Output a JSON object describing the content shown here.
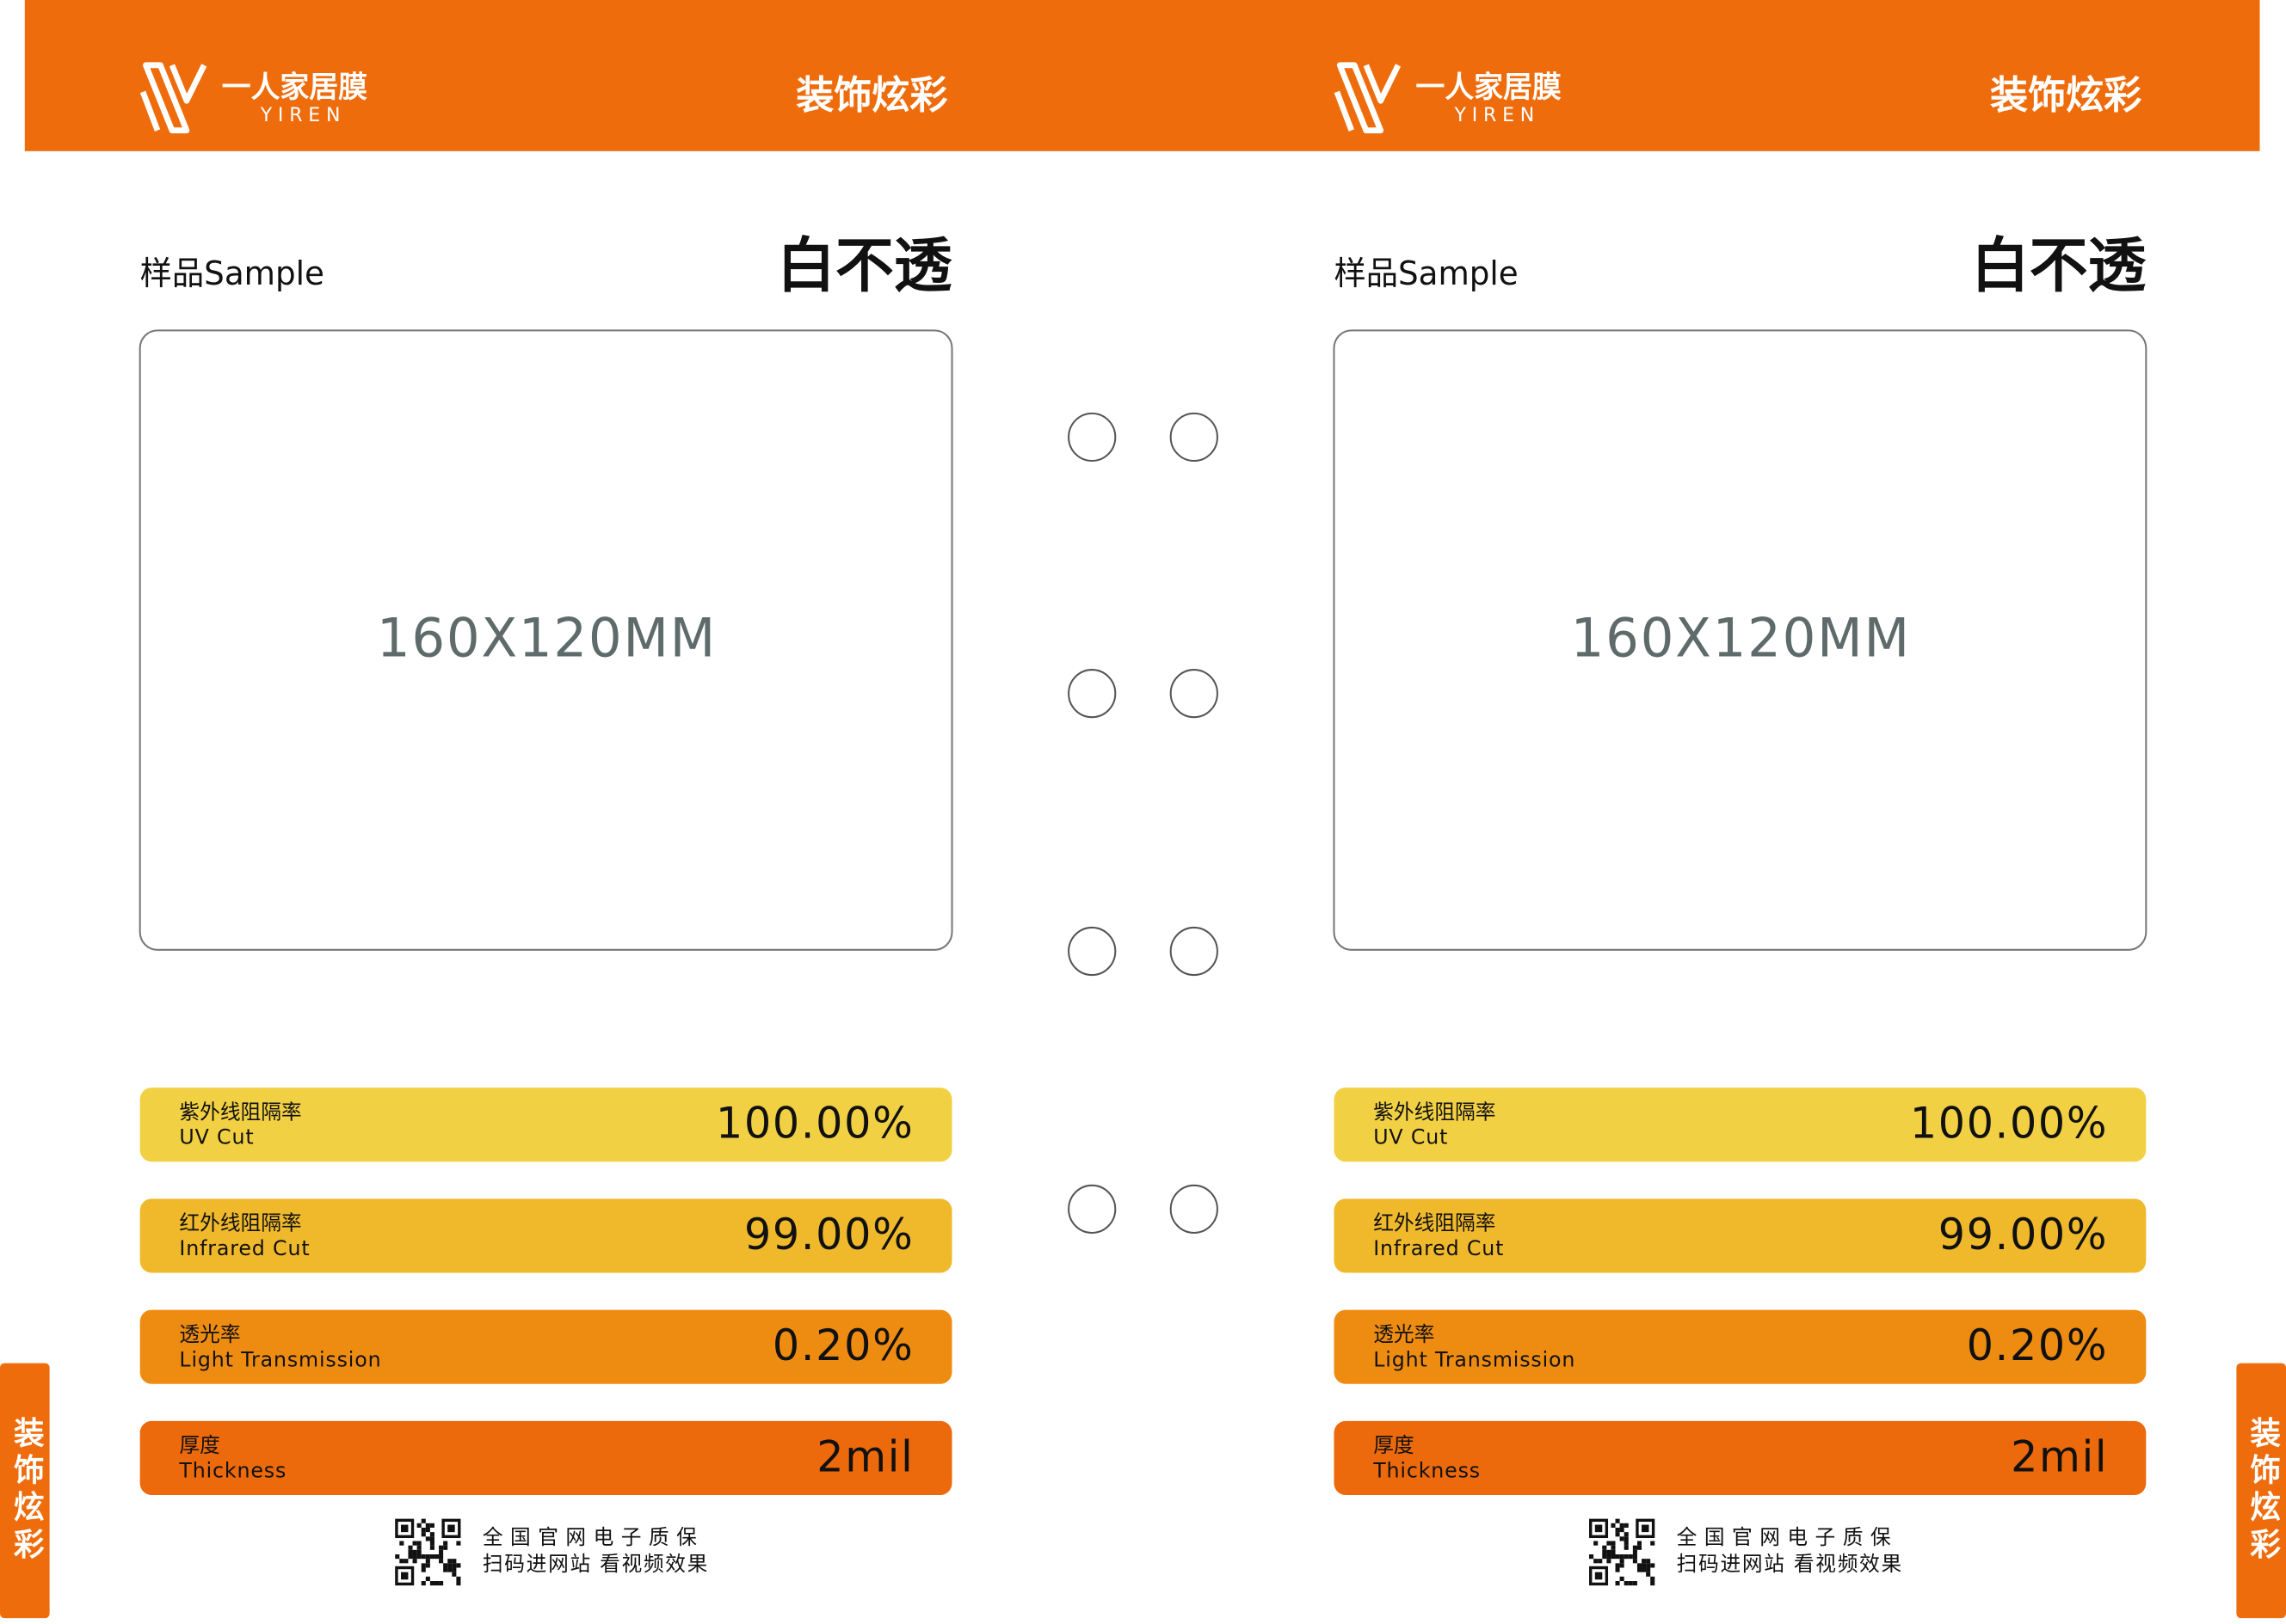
{
  "panels": [
    {
      "brand_cn": "一人家居膜",
      "brand_en": "YIREN",
      "header_title": "装饰炫彩",
      "sample_label": "样品Sample",
      "product": "白不透",
      "size": "160X120MM",
      "specs": [
        {
          "cn": "紫外线阻隔率",
          "en": "UV Cut",
          "value": "100.00%"
        },
        {
          "cn": "红外线阻隔率",
          "en": "Infrared Cut",
          "value": "99.00%"
        },
        {
          "cn": "透光率",
          "en": "Light Transmission",
          "value": "0.20%"
        },
        {
          "cn": "厚度",
          "en": "Thickness",
          "value": "2mil"
        }
      ],
      "footer": [
        "全国官网电子质保",
        "扫码进网站 看视频效果"
      ],
      "side_tab": "装饰炫彩"
    },
    {
      "brand_cn": "一人家居膜",
      "brand_en": "YIREN",
      "header_title": "装饰炫彩",
      "sample_label": "样品Sample",
      "product": "白不透",
      "size": "160X120MM",
      "specs": [
        {
          "cn": "紫外线阻隔率",
          "en": "UV Cut",
          "value": "100.00%"
        },
        {
          "cn": "红外线阻隔率",
          "en": "Infrared Cut",
          "value": "99.00%"
        },
        {
          "cn": "透光率",
          "en": "Light Transmission",
          "value": "0.20%"
        },
        {
          "cn": "厚度",
          "en": "Thickness",
          "value": "2mil"
        }
      ],
      "footer": [
        "全国官网电子质保",
        "扫码进网站 看视频效果"
      ],
      "side_tab": "装饰炫彩"
    }
  ]
}
